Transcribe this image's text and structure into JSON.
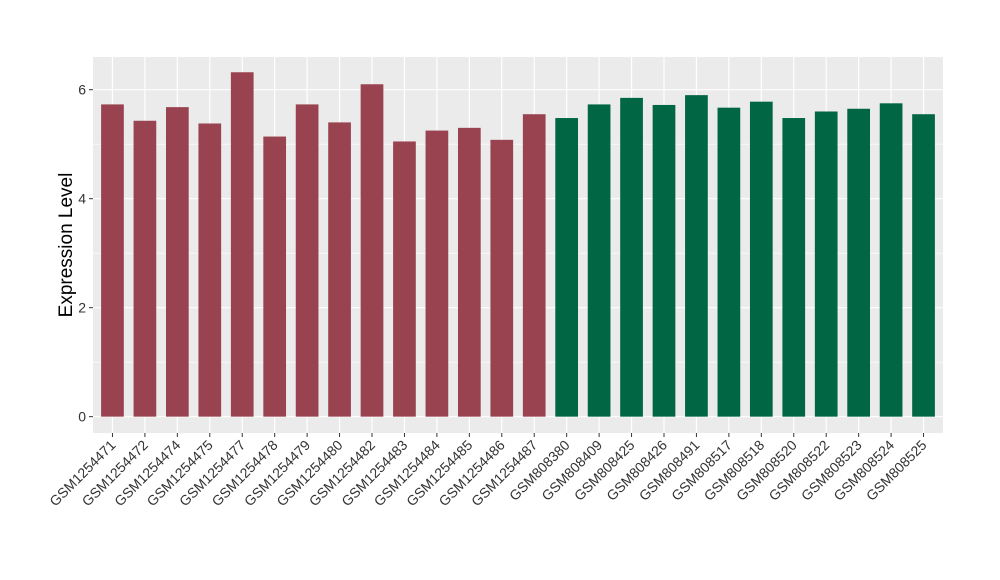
{
  "chart_data": {
    "type": "bar",
    "title": "",
    "xlabel": "",
    "ylabel": "Expression Level",
    "ylim": [
      -0.3,
      6.6
    ],
    "yticks": [
      0,
      2,
      4,
      6
    ],
    "grid": true,
    "categories": [
      "GSM1254471",
      "GSM1254472",
      "GSM1254474",
      "GSM1254475",
      "GSM1254477",
      "GSM1254478",
      "GSM1254479",
      "GSM1254480",
      "GSM1254482",
      "GSM1254483",
      "GSM1254484",
      "GSM1254485",
      "GSM1254486",
      "GSM1254487",
      "GSM808380",
      "GSM808409",
      "GSM808425",
      "GSM808426",
      "GSM808491",
      "GSM808517",
      "GSM808518",
      "GSM808520",
      "GSM808522",
      "GSM808523",
      "GSM808524",
      "GSM808525"
    ],
    "values": [
      5.73,
      5.43,
      5.68,
      5.38,
      6.32,
      5.14,
      5.73,
      5.4,
      6.1,
      5.05,
      5.25,
      5.3,
      5.08,
      5.55,
      5.48,
      5.73,
      5.85,
      5.72,
      5.9,
      5.67,
      5.78,
      5.48,
      5.6,
      5.65,
      5.75,
      5.55
    ],
    "groups": [
      0,
      0,
      0,
      0,
      0,
      0,
      0,
      0,
      0,
      0,
      0,
      0,
      0,
      0,
      1,
      1,
      1,
      1,
      1,
      1,
      1,
      1,
      1,
      1,
      1,
      1
    ],
    "group_colors": [
      "#9a4350",
      "#006644"
    ],
    "panel_background": "#ebebeb",
    "grid_color": "#ffffff"
  }
}
